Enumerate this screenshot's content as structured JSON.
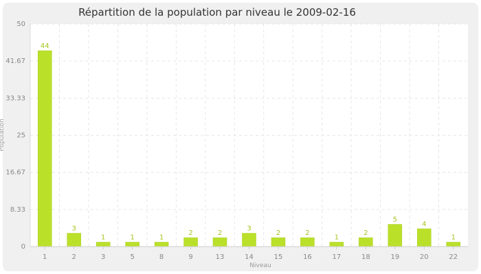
{
  "chart_data": {
    "type": "bar",
    "title": "Répartition de la population par niveau le 2009-02-16",
    "xlabel": "Niveau",
    "ylabel": "Population",
    "categories": [
      "1",
      "2",
      "3",
      "5",
      "8",
      "9",
      "13",
      "14",
      "15",
      "16",
      "17",
      "18",
      "19",
      "20",
      "22"
    ],
    "values": [
      44,
      3,
      1,
      1,
      1,
      2,
      2,
      3,
      2,
      2,
      1,
      2,
      5,
      4,
      1
    ],
    "data_labels": [
      "44",
      "3",
      "1",
      "1",
      "1",
      "2",
      "2",
      "3",
      "2",
      "2",
      "1",
      "2",
      "5",
      "4",
      "1"
    ],
    "ylim": [
      0,
      50
    ],
    "yticks": [
      0,
      8.33,
      16.67,
      25,
      33.33,
      41.67,
      50
    ],
    "ytick_labels": [
      "0",
      "8.33",
      "16.67",
      "25",
      "33.33",
      "41.67",
      "50"
    ],
    "grid": true,
    "legend": "none",
    "colors": {
      "bar": "#bbe02a",
      "bar_stroke": "#a9cc1c",
      "data_label": "#a3c41c",
      "background": "#f0f0f0",
      "plot_background": "#ffffff",
      "grid": "#e6e6e6"
    }
  }
}
